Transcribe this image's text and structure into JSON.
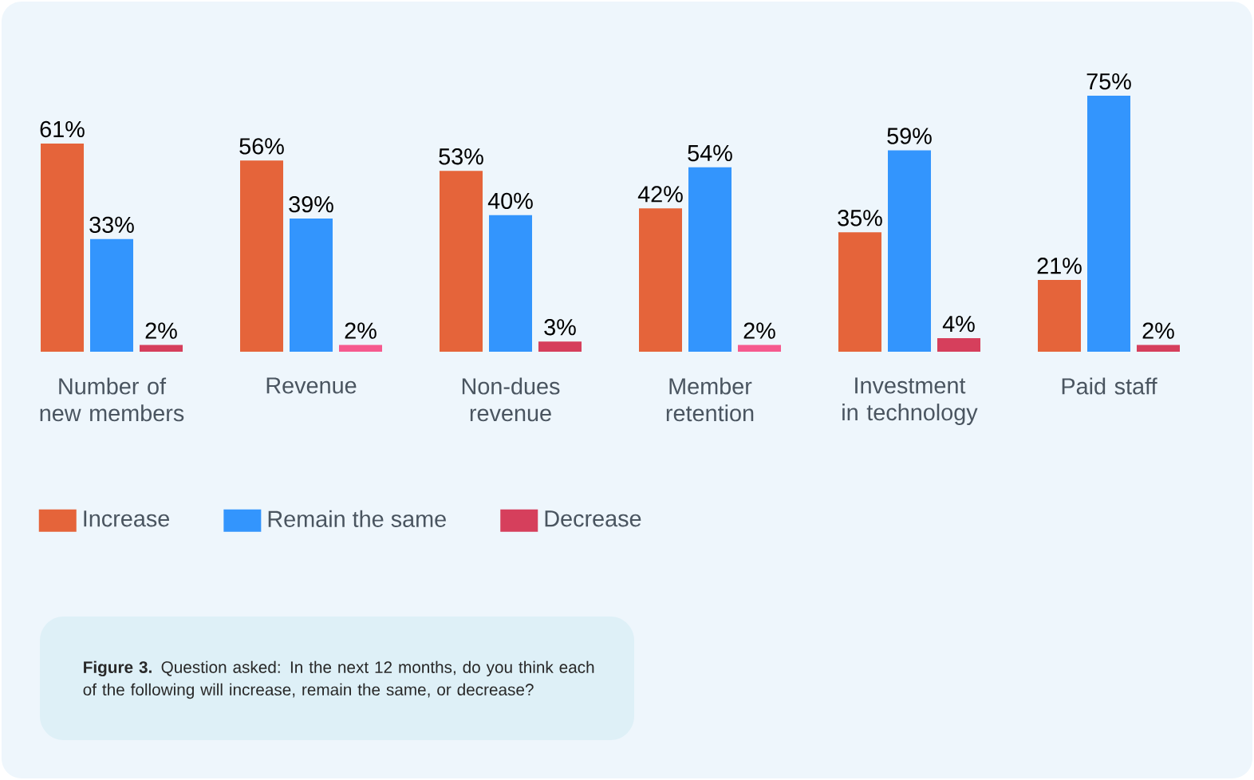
{
  "chart_data": {
    "type": "bar",
    "categories": [
      "Number of new members",
      "Revenue",
      "Non-dues revenue",
      "Member retention",
      "Investment in technology",
      "Paid staff"
    ],
    "series": [
      {
        "name": "Increase",
        "color": "#e5643a",
        "values": [
          61,
          56,
          53,
          42,
          35,
          21
        ],
        "value_labels": [
          "61%",
          "56%",
          "53%",
          "42%",
          "35%",
          "21%"
        ]
      },
      {
        "name": "Remain the same",
        "color": "#3395fd",
        "values": [
          33,
          39,
          40,
          54,
          59,
          75
        ],
        "value_labels": [
          "33%",
          "39%",
          "40%",
          "54%",
          "59%",
          "75%"
        ]
      },
      {
        "name": "Decrease",
        "colors": [
          "#d63f5c",
          "#f65a8e",
          "#d63f5c",
          "#f65a8e",
          "#d63f5c",
          "#d63f5c"
        ],
        "values": [
          2,
          2,
          3,
          2,
          4,
          2
        ],
        "value_labels": [
          "2%",
          "2%",
          "3%",
          "2%",
          "4%",
          "2%"
        ]
      }
    ],
    "legend": "bottom",
    "annotations": [
      "**Figure 3.** Question asked: In the next 12 months, do you think each of the following will increase, remain the same, or decrease?"
    ]
  }
}
